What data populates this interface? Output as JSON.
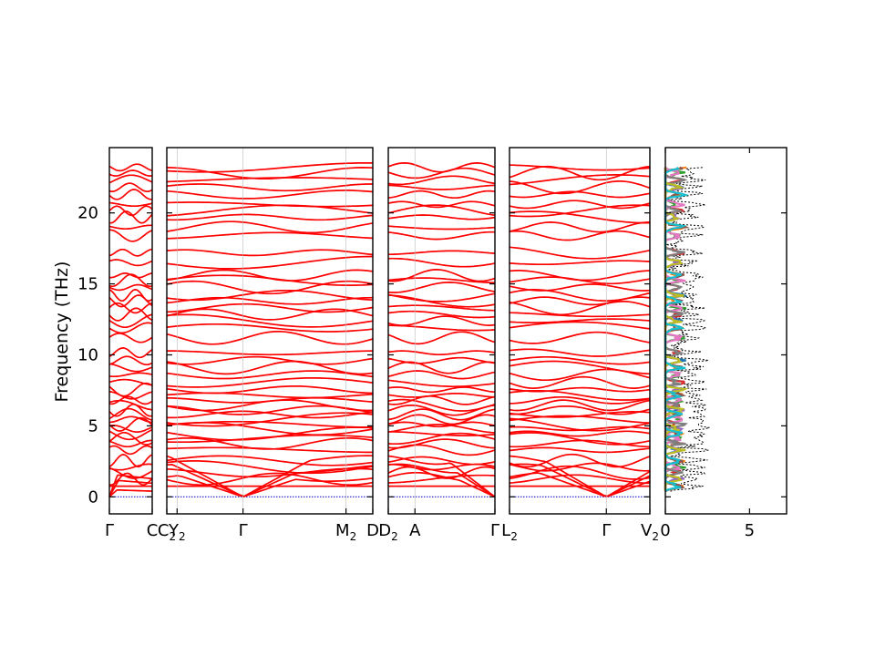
{
  "chart_data": {
    "type": "line",
    "ylabel": "Frequency (THz)",
    "ylim": [
      -1.2,
      24.6
    ],
    "yticks": [
      0,
      5,
      10,
      15,
      20
    ],
    "band_color": "#ff0000",
    "zero_line_color": "#0000cc",
    "panels": [
      {
        "name": "band-structure-segment-1",
        "ticks": [
          {
            "label": "Γ",
            "x": 0.0
          },
          {
            "label": "C",
            "x": 1.0
          }
        ]
      },
      {
        "name": "band-structure-segment-2",
        "ticks": [
          {
            "label": "C",
            "sub": "2",
            "x": 0.0
          },
          {
            "label": "Y",
            "sub": "2",
            "x": 0.05
          },
          {
            "label": "Γ",
            "x": 0.37
          },
          {
            "label": "M",
            "sub": "2",
            "x": 0.87
          },
          {
            "label": "D",
            "x": 1.0
          }
        ]
      },
      {
        "name": "band-structure-segment-3",
        "ticks": [
          {
            "label": "D",
            "sub": "2",
            "x": 0.0
          },
          {
            "label": "A",
            "x": 0.25
          },
          {
            "label": "Γ",
            "x": 1.0
          }
        ]
      },
      {
        "name": "band-structure-segment-4",
        "ticks": [
          {
            "label": "L",
            "sub": "2",
            "x": 0.0
          },
          {
            "label": "Γ",
            "x": 0.69
          },
          {
            "label": "V",
            "sub": "2",
            "x": 1.0
          }
        ]
      }
    ],
    "dos": {
      "xlim": [
        0,
        7.2
      ],
      "xticks": [
        0,
        5
      ],
      "total_color": "#000000",
      "projection_colors": [
        "#1f77b4",
        "#ff7f0e",
        "#2ca02c",
        "#d62728",
        "#9467bd",
        "#8c564b",
        "#e377c2",
        "#7f7f7f",
        "#bcbd22",
        "#17becf"
      ]
    },
    "band_frequencies_at_gamma": [
      0.0,
      0.0,
      0.0,
      0.75,
      1.25,
      1.7,
      2.1,
      2.55,
      3.3,
      3.75,
      4.1,
      4.45,
      4.8,
      5.1,
      5.45,
      5.8,
      6.1,
      6.45,
      6.8,
      7.15,
      7.55,
      8.05,
      8.6,
      9.1,
      9.6,
      10.15,
      11.2,
      11.9,
      12.4,
      12.85,
      13.3,
      13.8,
      14.2,
      14.75,
      15.25,
      15.6,
      16.5,
      17.2,
      18.4,
      19.0,
      19.7,
      20.15,
      20.6,
      21.3,
      21.8,
      22.3,
      22.8,
      23.2
    ]
  }
}
